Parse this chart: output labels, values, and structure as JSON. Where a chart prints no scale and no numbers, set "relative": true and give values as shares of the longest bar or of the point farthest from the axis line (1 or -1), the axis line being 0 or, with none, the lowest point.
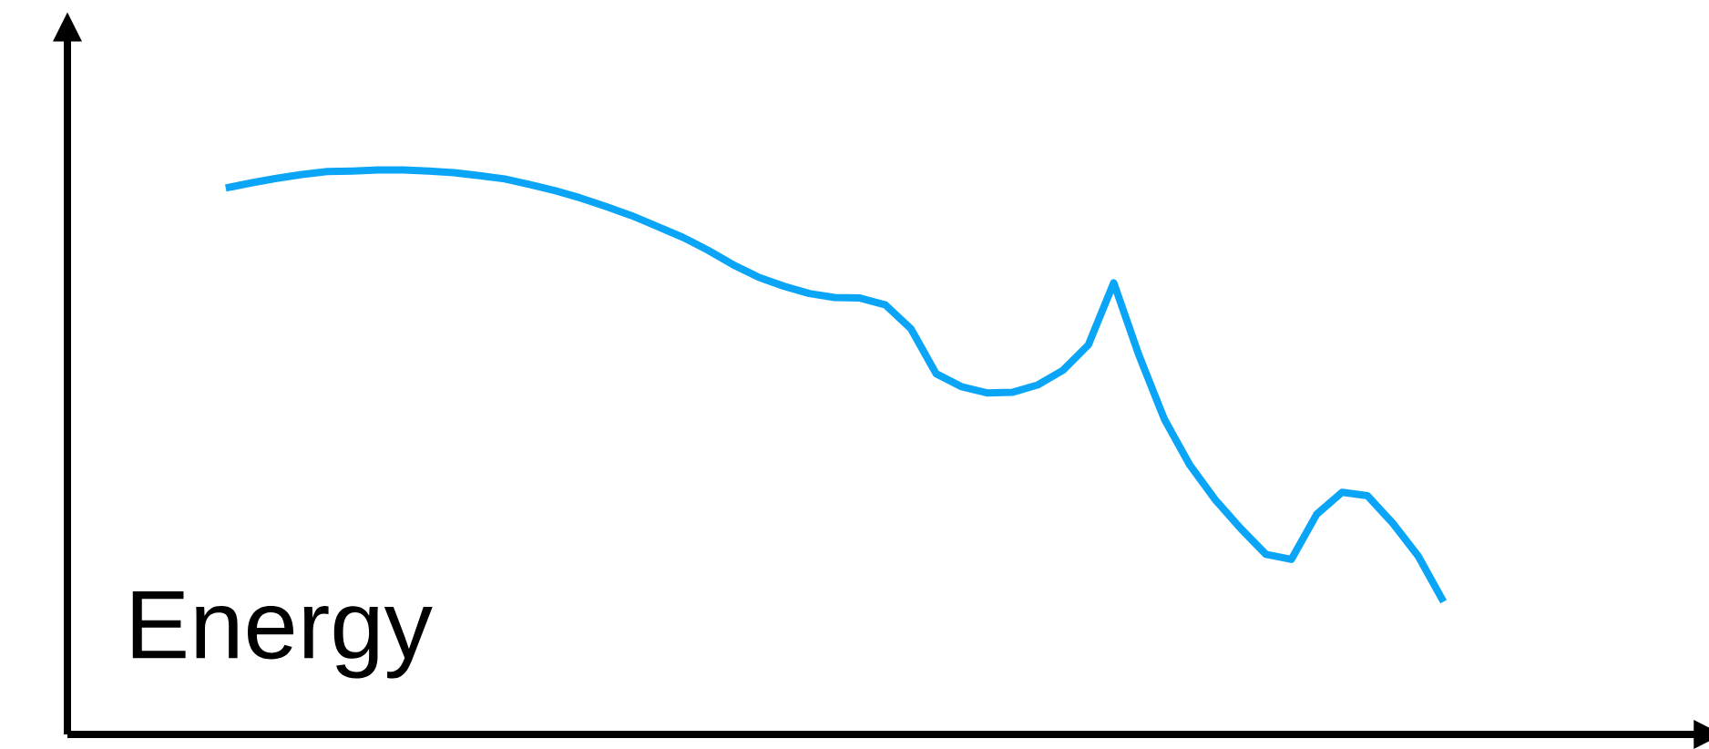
{
  "chart_data": {
    "type": "line",
    "relative": true,
    "annotations": [
      "Energy"
    ],
    "categories": [
      null,
      null,
      null,
      null,
      null,
      null,
      null,
      null,
      null,
      null,
      null,
      null,
      null,
      null,
      null,
      null,
      null,
      null,
      null,
      null,
      null,
      null,
      null,
      null,
      null,
      null,
      null,
      null,
      null,
      null,
      null,
      null,
      null,
      null,
      null,
      null,
      null,
      null,
      null,
      null,
      null,
      null,
      null,
      null,
      null,
      null,
      null,
      null,
      null
    ],
    "series": [
      {
        "color": "#0ba5f7",
        "values": [
          0.968,
          0.977,
          0.985,
          0.992,
          0.997,
          0.998,
          1,
          1,
          0.998,
          0.995,
          0.99,
          0.984,
          0.974,
          0.963,
          0.95,
          0.935,
          0.919,
          0.9,
          0.881,
          0.858,
          0.832,
          0.81,
          0.794,
          0.781,
          0.774,
          0.773,
          0.761,
          0.719,
          0.639,
          0.616,
          0.605,
          0.606,
          0.619,
          0.645,
          0.69,
          0.8,
          0.671,
          0.558,
          0.477,
          0.416,
          0.365,
          0.319,
          0.31,
          0.39,
          0.429,
          0.423,
          0.374,
          0.316,
          0.235
        ]
      }
    ],
    "marker": "none",
    "line_style": "solid"
  }
}
